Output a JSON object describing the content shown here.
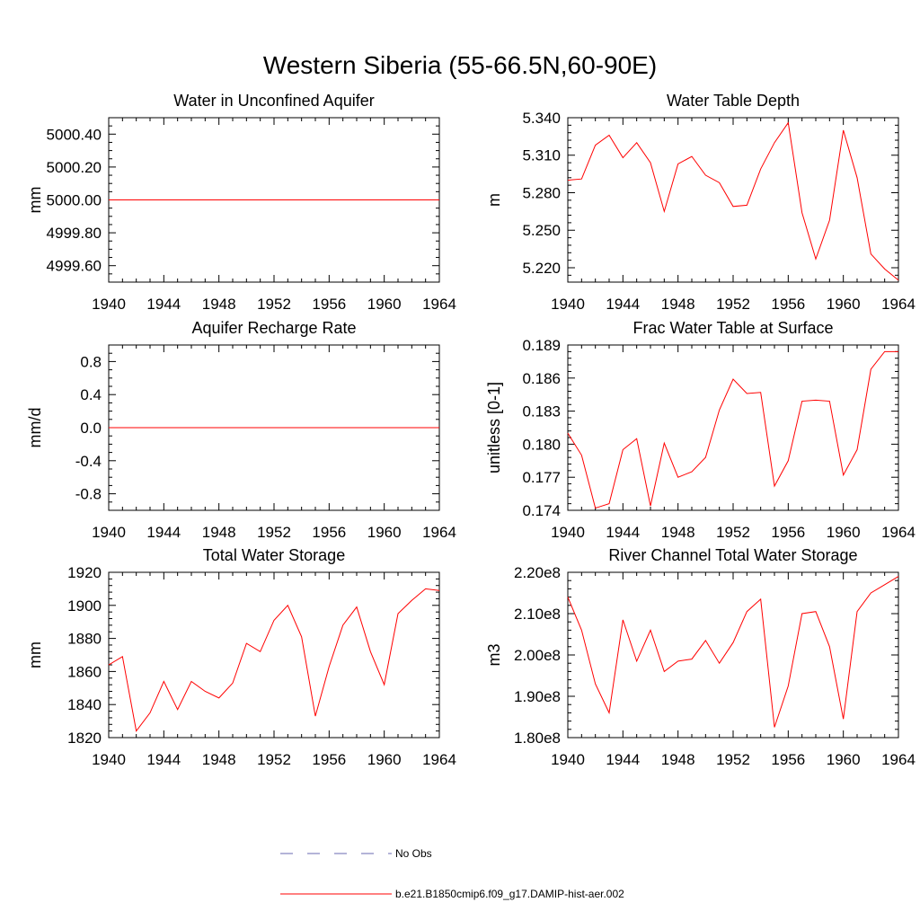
{
  "figure": {
    "title": "Western Siberia (55-66.5N,60-90E)"
  },
  "colors": {
    "series": "#ff0000",
    "obs": "#6a6ab0",
    "axis": "#000000"
  },
  "legend": {
    "placement": "bottom-center",
    "entries": [
      {
        "label": "No Obs",
        "style": "dashed",
        "color": "#6a6ab0"
      },
      {
        "label": "b.e21.B1850cmip6.f09_g17.DAMIP-hist-aer.002",
        "style": "solid",
        "color": "#ff0000"
      }
    ]
  },
  "chart_data": [
    {
      "type": "line",
      "title": "Water in Unconfined Aquifer",
      "ylabel": "mm",
      "xlim": [
        1940,
        1964
      ],
      "ylim": [
        4999.5,
        5000.5
      ],
      "xticks": [
        1940,
        1944,
        1948,
        1952,
        1956,
        1960,
        1964
      ],
      "yticks": [
        4999.6,
        4999.8,
        5000.0,
        5000.2,
        5000.4
      ],
      "ytick_labels": [
        "4999.60",
        "4999.80",
        "5000.00",
        "5000.20",
        "5000.40"
      ],
      "minor_step": 0.05,
      "x": [
        1940,
        1941,
        1942,
        1943,
        1944,
        1945,
        1946,
        1947,
        1948,
        1949,
        1950,
        1951,
        1952,
        1953,
        1954,
        1955,
        1956,
        1957,
        1958,
        1959,
        1960,
        1961,
        1962,
        1963,
        1964
      ],
      "values": [
        5000,
        5000,
        5000,
        5000,
        5000,
        5000,
        5000,
        5000,
        5000,
        5000,
        5000,
        5000,
        5000,
        5000,
        5000,
        5000,
        5000,
        5000,
        5000,
        5000,
        5000,
        5000,
        5000,
        5000,
        5000
      ]
    },
    {
      "type": "line",
      "title": "Water Table Depth",
      "ylabel": "m",
      "xlim": [
        1940,
        1964
      ],
      "ylim": [
        5.2085,
        5.34
      ],
      "xticks": [
        1940,
        1944,
        1948,
        1952,
        1956,
        1960,
        1964
      ],
      "yticks": [
        5.22,
        5.25,
        5.28,
        5.31,
        5.34
      ],
      "ytick_labels": [
        "5.220",
        "5.250",
        "5.280",
        "5.310",
        "5.340"
      ],
      "minor_step": 0.006,
      "x": [
        1940,
        1941,
        1942,
        1943,
        1944,
        1945,
        1946,
        1947,
        1948,
        1949,
        1950,
        1951,
        1952,
        1953,
        1954,
        1955,
        1956,
        1957,
        1958,
        1959,
        1960,
        1961,
        1962,
        1963,
        1964
      ],
      "values": [
        5.29,
        5.291,
        5.318,
        5.326,
        5.308,
        5.32,
        5.304,
        5.265,
        5.303,
        5.309,
        5.294,
        5.288,
        5.269,
        5.27,
        5.299,
        5.32,
        5.336,
        5.264,
        5.227,
        5.258,
        5.33,
        5.292,
        5.231,
        5.219,
        5.21
      ]
    },
    {
      "type": "line",
      "title": "Aquifer Recharge Rate",
      "ylabel": "mm/d",
      "xlim": [
        1940,
        1964
      ],
      "ylim": [
        -1.0,
        1.0
      ],
      "xticks": [
        1940,
        1944,
        1948,
        1952,
        1956,
        1960,
        1964
      ],
      "yticks": [
        -0.8,
        -0.4,
        0.0,
        0.4,
        0.8
      ],
      "ytick_labels": [
        "-0.8",
        "-0.4",
        "0.0",
        "0.4",
        "0.8"
      ],
      "minor_step": 0.1,
      "x": [
        1940,
        1941,
        1942,
        1943,
        1944,
        1945,
        1946,
        1947,
        1948,
        1949,
        1950,
        1951,
        1952,
        1953,
        1954,
        1955,
        1956,
        1957,
        1958,
        1959,
        1960,
        1961,
        1962,
        1963,
        1964
      ],
      "values": [
        0,
        0,
        0,
        0,
        0,
        0,
        0,
        0,
        0,
        0,
        0,
        0,
        0,
        0,
        0,
        0,
        0,
        0,
        0,
        0,
        0,
        0,
        0,
        0,
        0
      ]
    },
    {
      "type": "line",
      "title": "Frac Water Table at Surface",
      "ylabel": "unitless [0-1]",
      "xlim": [
        1940,
        1964
      ],
      "ylim": [
        0.174,
        0.189
      ],
      "xticks": [
        1940,
        1944,
        1948,
        1952,
        1956,
        1960,
        1964
      ],
      "yticks": [
        0.174,
        0.177,
        0.18,
        0.183,
        0.186,
        0.189
      ],
      "ytick_labels": [
        "0.174",
        "0.177",
        "0.180",
        "0.183",
        "0.186",
        "0.189"
      ],
      "minor_step": 0.0006,
      "x": [
        1940,
        1941,
        1942,
        1943,
        1944,
        1945,
        1946,
        1947,
        1948,
        1949,
        1950,
        1951,
        1952,
        1953,
        1954,
        1955,
        1956,
        1957,
        1958,
        1959,
        1960,
        1961,
        1962,
        1963,
        1964
      ],
      "values": [
        0.181,
        0.179,
        0.1742,
        0.1746,
        0.1795,
        0.1805,
        0.1744,
        0.1801,
        0.177,
        0.1775,
        0.1788,
        0.1831,
        0.1859,
        0.1846,
        0.1847,
        0.1762,
        0.1785,
        0.1839,
        0.184,
        0.1839,
        0.1772,
        0.1795,
        0.1868,
        0.1884,
        0.1884
      ]
    },
    {
      "type": "line",
      "title": "Total Water Storage",
      "ylabel": "mm",
      "xlim": [
        1940,
        1964
      ],
      "ylim": [
        1820,
        1920
      ],
      "xticks": [
        1940,
        1944,
        1948,
        1952,
        1956,
        1960,
        1964
      ],
      "yticks": [
        1820,
        1840,
        1860,
        1880,
        1900,
        1920
      ],
      "ytick_labels": [
        "1820",
        "1840",
        "1860",
        "1880",
        "1900",
        "1920"
      ],
      "minor_step": 4,
      "x": [
        1940,
        1941,
        1942,
        1943,
        1944,
        1945,
        1946,
        1947,
        1948,
        1949,
        1950,
        1951,
        1952,
        1953,
        1954,
        1955,
        1956,
        1957,
        1958,
        1959,
        1960,
        1961,
        1962,
        1963,
        1964
      ],
      "values": [
        1864,
        1869,
        1824,
        1835,
        1854,
        1837,
        1854,
        1848,
        1844,
        1853,
        1877,
        1872,
        1891,
        1900,
        1881,
        1833,
        1863,
        1888,
        1899,
        1872,
        1852,
        1895,
        1903,
        1910,
        1909
      ]
    },
    {
      "type": "line",
      "title": "River Channel Total Water Storage",
      "ylabel": "m3",
      "xlim": [
        1940,
        1964
      ],
      "ylim": [
        180000000,
        220000000
      ],
      "xticks": [
        1940,
        1944,
        1948,
        1952,
        1956,
        1960,
        1964
      ],
      "yticks": [
        180000000,
        190000000,
        200000000,
        210000000,
        220000000
      ],
      "ytick_labels": [
        "1.80e8",
        "1.90e8",
        "2.00e8",
        "2.10e8",
        "2.20e8"
      ],
      "minor_step": 2000000,
      "x": [
        1940,
        1941,
        1942,
        1943,
        1944,
        1945,
        1946,
        1947,
        1948,
        1949,
        1950,
        1951,
        1952,
        1953,
        1954,
        1955,
        1956,
        1957,
        1958,
        1959,
        1960,
        1961,
        1962,
        1963,
        1964
      ],
      "values": [
        214000000,
        206000000,
        193000000,
        186000000,
        208500000,
        198500000,
        206000000,
        196000000,
        198500000,
        199000000,
        203500000,
        198000000,
        203000000,
        210500000,
        213500000,
        182500000,
        192500000,
        210000000,
        210500000,
        202000000,
        184500000,
        210500000,
        215000000,
        217000000,
        219000000
      ]
    }
  ]
}
